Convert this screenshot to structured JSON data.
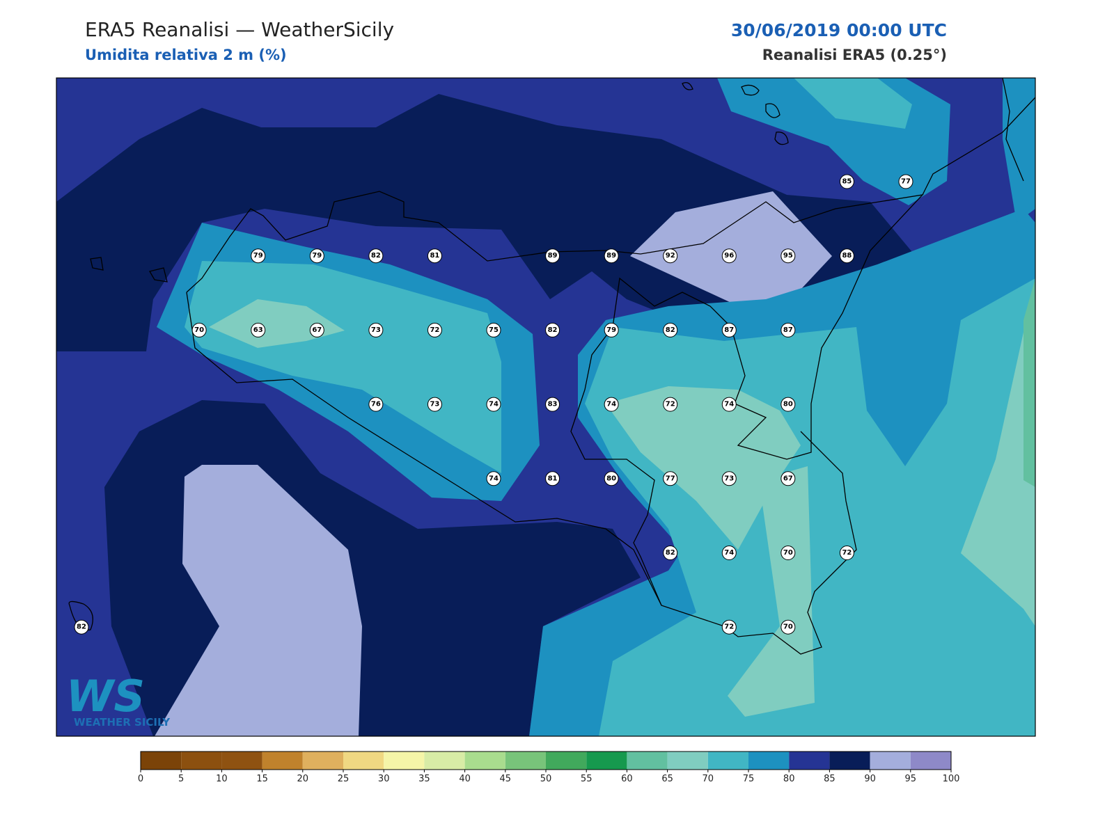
{
  "header": {
    "title": "ERA5 Reanalisi — WeatherSicily",
    "subtitle": "Umidita relativa 2 m (%)",
    "date": "30/06/2019 00:00 UTC",
    "source": "Reanalisi ERA5 (0.25°)"
  },
  "logo": {
    "mark": "WS",
    "text": "WEATHER SICILY"
  },
  "stations": {
    "rows": [
      [
        null,
        null,
        null,
        null,
        null,
        null,
        null,
        null,
        null,
        null,
        null,
        null,
        null,
        85,
        77
      ],
      [
        null,
        null,
        null,
        79,
        79,
        82,
        81,
        null,
        89,
        89,
        92,
        96,
        95,
        88,
        null
      ],
      [
        null,
        null,
        70,
        63,
        67,
        73,
        72,
        75,
        82,
        79,
        82,
        87,
        87,
        null,
        null
      ],
      [
        null,
        null,
        null,
        null,
        null,
        76,
        73,
        74,
        83,
        74,
        72,
        74,
        80,
        null,
        null
      ],
      [
        null,
        null,
        null,
        null,
        null,
        null,
        null,
        74,
        81,
        80,
        77,
        73,
        67,
        null,
        null
      ],
      [
        null,
        null,
        null,
        null,
        null,
        null,
        null,
        null,
        null,
        null,
        82,
        74,
        70,
        72,
        null
      ],
      [
        82,
        null,
        null,
        null,
        null,
        null,
        null,
        null,
        null,
        null,
        null,
        72,
        70,
        null,
        null
      ]
    ]
  },
  "colorbar": {
    "ticks": [
      0,
      5,
      10,
      15,
      20,
      25,
      30,
      35,
      40,
      45,
      50,
      55,
      60,
      65,
      70,
      75,
      80,
      85,
      90,
      95,
      100
    ],
    "colors": [
      "#7b4308",
      "#8c500f",
      "#8f5211",
      "#c0822c",
      "#dfb05e",
      "#f0d882",
      "#f5f5a8",
      "#d8eca6",
      "#a9dc8e",
      "#78c47a",
      "#41a95c",
      "#16994e",
      "#62c0a0",
      "#80cdc0",
      "#41b6c4",
      "#1d91c0",
      "#253494",
      "#081d58",
      "#a4aedc",
      "#8e89c8"
    ]
  }
}
